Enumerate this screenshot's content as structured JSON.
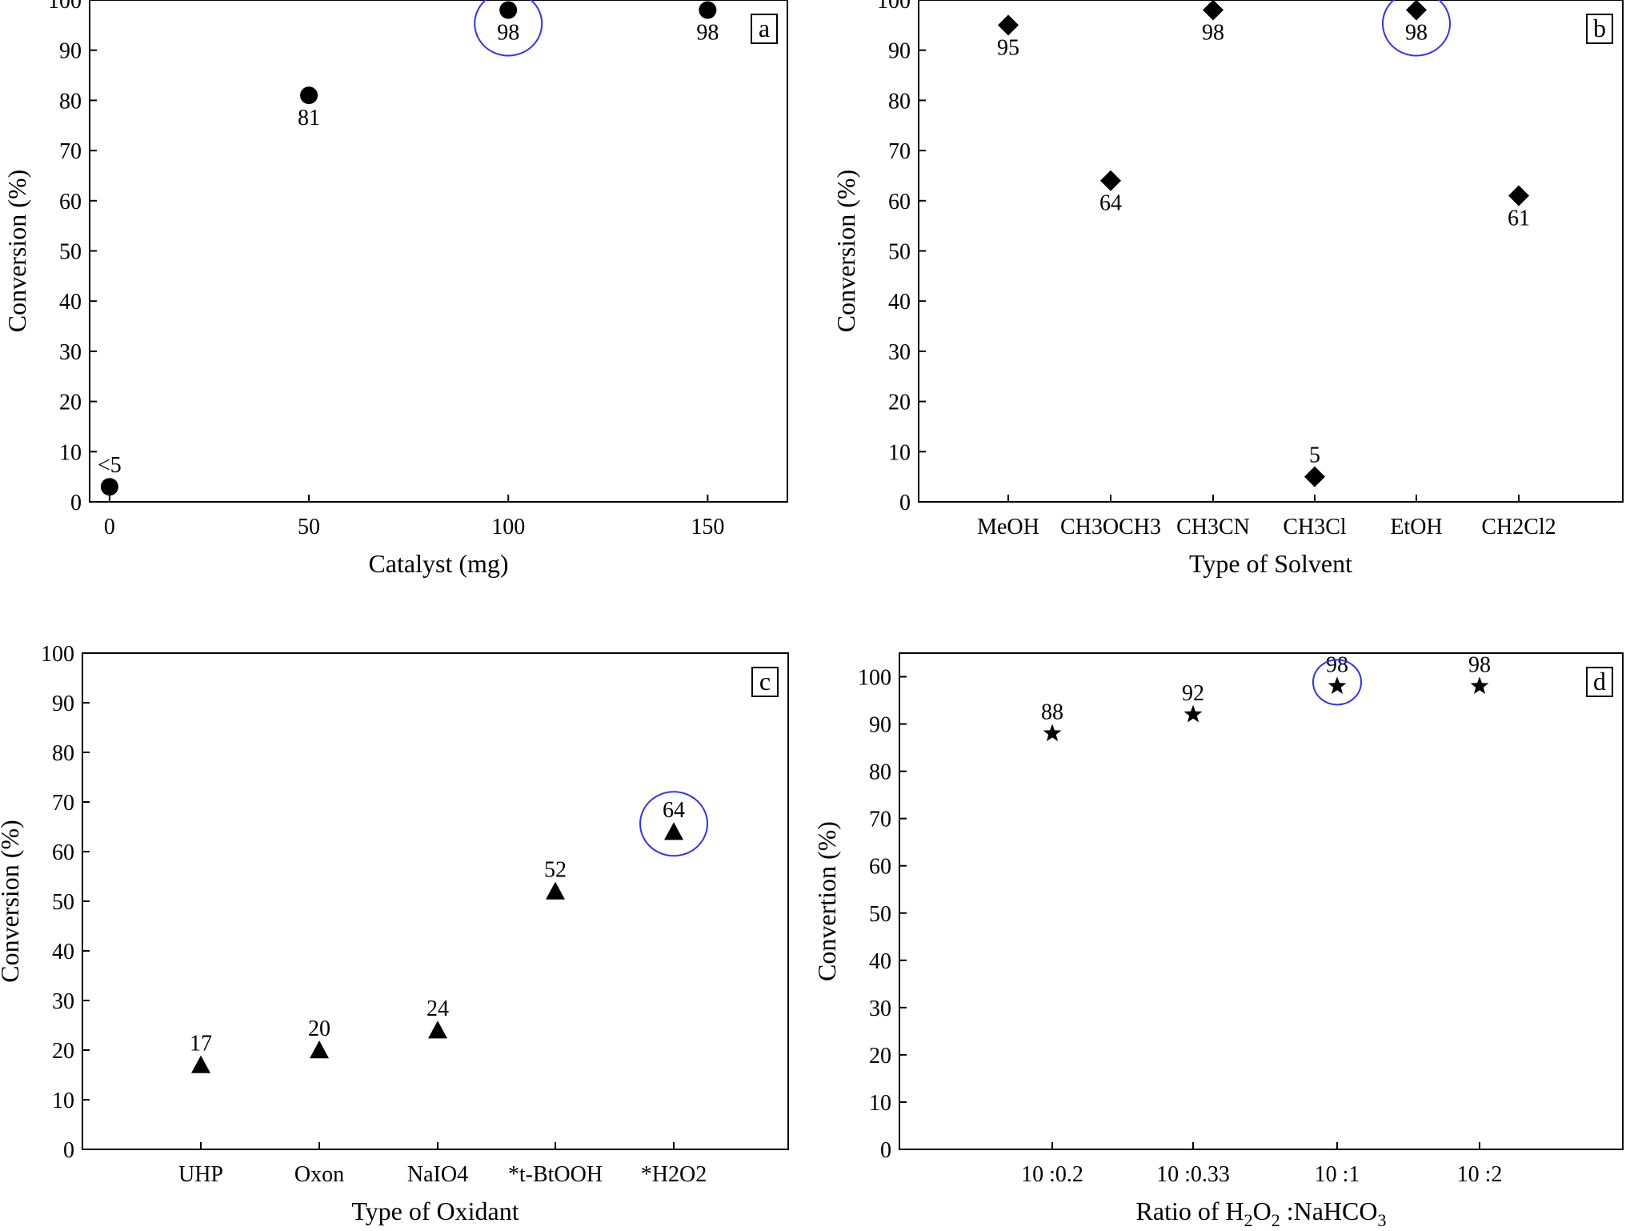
{
  "chart_data": [
    {
      "panel": "a",
      "type": "scatter",
      "x_kind": "numeric",
      "xlabel": "Catalyst (mg)",
      "ylabel": "Conversion (%)",
      "xlim": [
        -5,
        170
      ],
      "ylim": [
        0,
        100
      ],
      "x_ticks": [
        0,
        50,
        100,
        150
      ],
      "y_ticks": [
        0,
        10,
        20,
        30,
        40,
        50,
        60,
        70,
        80,
        90,
        100
      ],
      "marker": "circle",
      "x": [
        0,
        50,
        100,
        150
      ],
      "y": [
        3,
        81,
        98,
        98
      ],
      "labels": [
        "<5",
        "81",
        "98",
        "98"
      ],
      "label_position": [
        "above",
        "below",
        "below",
        "below"
      ],
      "highlighted_index": 2
    },
    {
      "panel": "b",
      "type": "scatter",
      "x_kind": "categorical",
      "xlabel": "Type of Solvent",
      "ylabel": "Conversion (%)",
      "ylim": [
        0,
        100
      ],
      "y_ticks": [
        0,
        10,
        20,
        30,
        40,
        50,
        60,
        70,
        80,
        90,
        100
      ],
      "marker": "diamond",
      "categories": [
        "MeOH",
        "CH3OCH3",
        "CH3CN",
        "CH3Cl",
        "EtOH",
        "CH2Cl2"
      ],
      "y": [
        95,
        64,
        98,
        5,
        98,
        61
      ],
      "labels": [
        "95",
        "64",
        "98",
        "5",
        "98",
        "61"
      ],
      "label_position": [
        "below",
        "below",
        "below",
        "above",
        "below",
        "below"
      ],
      "highlighted_index": 4
    },
    {
      "panel": "c",
      "type": "scatter",
      "x_kind": "categorical",
      "xlabel": "Type of Oxidant",
      "ylabel": "Conversion (%)",
      "ylim": [
        0,
        100
      ],
      "y_ticks": [
        0,
        10,
        20,
        30,
        40,
        50,
        60,
        70,
        80,
        90,
        100
      ],
      "marker": "triangle",
      "categories": [
        "UHP",
        "Oxon",
        "NaIO4",
        "*t-BtOOH",
        "*H2O2"
      ],
      "y": [
        17,
        20,
        24,
        52,
        64
      ],
      "labels": [
        "17",
        "20",
        "24",
        "52",
        "64"
      ],
      "label_position": [
        "above",
        "above",
        "above",
        "above",
        "above"
      ],
      "highlighted_index": 4
    },
    {
      "panel": "d",
      "type": "scatter",
      "x_kind": "categorical",
      "xlabel_parts": [
        "Ratio of H",
        "2",
        "O",
        "2",
        " :NaHCO",
        "3"
      ],
      "ylabel": "Convertion (%)",
      "ylim": [
        0,
        105
      ],
      "y_ticks": [
        0,
        10,
        20,
        30,
        40,
        50,
        60,
        70,
        80,
        90,
        100
      ],
      "marker": "star",
      "categories": [
        "10 :0.2",
        "10 :0.33",
        "10 :1",
        "10 :2"
      ],
      "y": [
        88,
        92,
        98,
        98
      ],
      "labels": [
        "88",
        "92",
        "98",
        "98"
      ],
      "label_position": [
        "above",
        "above",
        "above",
        "above"
      ],
      "highlighted_index": 2
    }
  ]
}
